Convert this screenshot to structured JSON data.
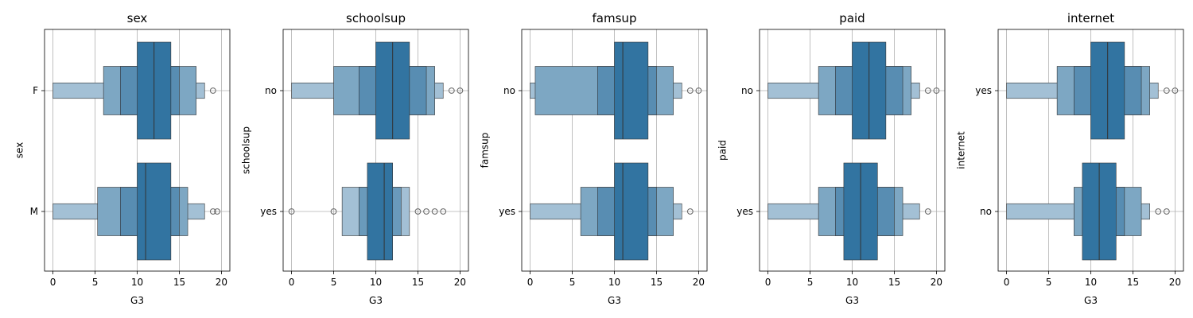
{
  "colors": {
    "grid": "#b0b0b0",
    "box": "#3274a1",
    "edge": "#333333"
  },
  "chart_data": [
    {
      "type": "boxenplot",
      "title": "sex",
      "xlabel": "G3",
      "ylabel": "sex",
      "xlim": [
        -1,
        21
      ],
      "xticks": [
        0,
        5,
        10,
        15,
        20
      ],
      "categories": [
        "F",
        "M"
      ],
      "grid": true,
      "boxes": [
        {
          "levels": [
            [
              0,
              18
            ],
            [
              6,
              17
            ],
            [
              8,
              15
            ],
            [
              10,
              14
            ]
          ],
          "median": 12,
          "outliers": [
            19
          ]
        },
        {
          "levels": [
            [
              0,
              18
            ],
            [
              5.3,
              16
            ],
            [
              8,
              15
            ],
            [
              10,
              14
            ]
          ],
          "median": 11,
          "outliers": [
            19,
            19.5
          ]
        }
      ]
    },
    {
      "type": "boxenplot",
      "title": "schoolsup",
      "xlabel": "G3",
      "ylabel": "schoolsup",
      "xlim": [
        -1,
        21
      ],
      "xticks": [
        0,
        5,
        10,
        15,
        20
      ],
      "categories": [
        "no",
        "yes"
      ],
      "grid": true,
      "boxes": [
        {
          "levels": [
            [
              0,
              18
            ],
            [
              5,
              17
            ],
            [
              8,
              16
            ],
            [
              10,
              14
            ]
          ],
          "median": 12,
          "outliers": [
            19,
            20
          ]
        },
        {
          "levels": [
            [
              6,
              14
            ],
            [
              8,
              13
            ],
            [
              9,
              12
            ]
          ],
          "median": 11,
          "outliers": [
            0,
            5,
            15,
            16,
            17,
            18
          ]
        }
      ]
    },
    {
      "type": "boxenplot",
      "title": "famsup",
      "xlabel": "G3",
      "ylabel": "famsup",
      "xlim": [
        -1,
        21
      ],
      "xticks": [
        0,
        5,
        10,
        15,
        20
      ],
      "categories": [
        "no",
        "yes"
      ],
      "grid": true,
      "boxes": [
        {
          "levels": [
            [
              0,
              18
            ],
            [
              0.6,
              17
            ],
            [
              8,
              15
            ],
            [
              10,
              14
            ]
          ],
          "median": 11,
          "outliers": [
            19,
            20
          ]
        },
        {
          "levels": [
            [
              0,
              18
            ],
            [
              6,
              17
            ],
            [
              8,
              15
            ],
            [
              10,
              14
            ]
          ],
          "median": 11,
          "outliers": [
            19
          ]
        }
      ]
    },
    {
      "type": "boxenplot",
      "title": "paid",
      "xlabel": "G3",
      "ylabel": "paid",
      "xlim": [
        -1,
        21
      ],
      "xticks": [
        0,
        5,
        10,
        15,
        20
      ],
      "categories": [
        "no",
        "yes"
      ],
      "grid": true,
      "boxes": [
        {
          "levels": [
            [
              0,
              18
            ],
            [
              6,
              17
            ],
            [
              8,
              16
            ],
            [
              10,
              14
            ]
          ],
          "median": 12,
          "outliers": [
            19,
            20
          ]
        },
        {
          "levels": [
            [
              0,
              18
            ],
            [
              6,
              16
            ],
            [
              8,
              15
            ],
            [
              9,
              13
            ]
          ],
          "median": 11,
          "outliers": [
            19
          ]
        }
      ]
    },
    {
      "type": "boxenplot",
      "title": "internet",
      "xlabel": "G3",
      "ylabel": "internet",
      "xlim": [
        -1,
        21
      ],
      "xticks": [
        0,
        5,
        10,
        15,
        20
      ],
      "categories": [
        "yes",
        "no"
      ],
      "grid": true,
      "boxes": [
        {
          "levels": [
            [
              0,
              18
            ],
            [
              6,
              17
            ],
            [
              8,
              16
            ],
            [
              10,
              14
            ]
          ],
          "median": 12,
          "outliers": [
            19,
            20
          ]
        },
        {
          "levels": [
            [
              0,
              17
            ],
            [
              8,
              16
            ],
            [
              9,
              14
            ],
            [
              9,
              13
            ]
          ],
          "median": 11,
          "outliers": [
            18,
            19
          ]
        }
      ]
    }
  ]
}
